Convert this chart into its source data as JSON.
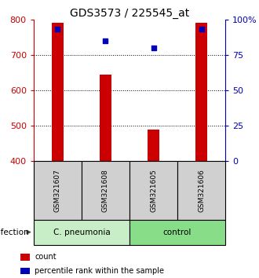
{
  "title": "GDS3573 / 225545_at",
  "samples": [
    "GSM321607",
    "GSM321608",
    "GSM321605",
    "GSM321606"
  ],
  "counts": [
    790,
    645,
    490,
    790
  ],
  "percentiles": [
    93,
    85,
    80,
    93
  ],
  "ylim_left": [
    400,
    800
  ],
  "ylim_right": [
    0,
    100
  ],
  "yticks_left": [
    400,
    500,
    600,
    700,
    800
  ],
  "yticks_right": [
    0,
    25,
    50,
    75,
    100
  ],
  "bar_color": "#cc0000",
  "dot_color": "#0000bb",
  "groups": [
    {
      "label": "C. pneumonia",
      "color": "#c8eec8",
      "samples": [
        0,
        1
      ]
    },
    {
      "label": "control",
      "color": "#88dd88",
      "samples": [
        2,
        3
      ]
    }
  ],
  "legend_items": [
    {
      "label": "count",
      "color": "#cc0000"
    },
    {
      "label": "percentile rank within the sample",
      "color": "#0000bb"
    }
  ],
  "bar_width": 0.25,
  "title_fontsize": 10,
  "tick_fontsize": 8,
  "sample_box_color": "#d0d0d0"
}
